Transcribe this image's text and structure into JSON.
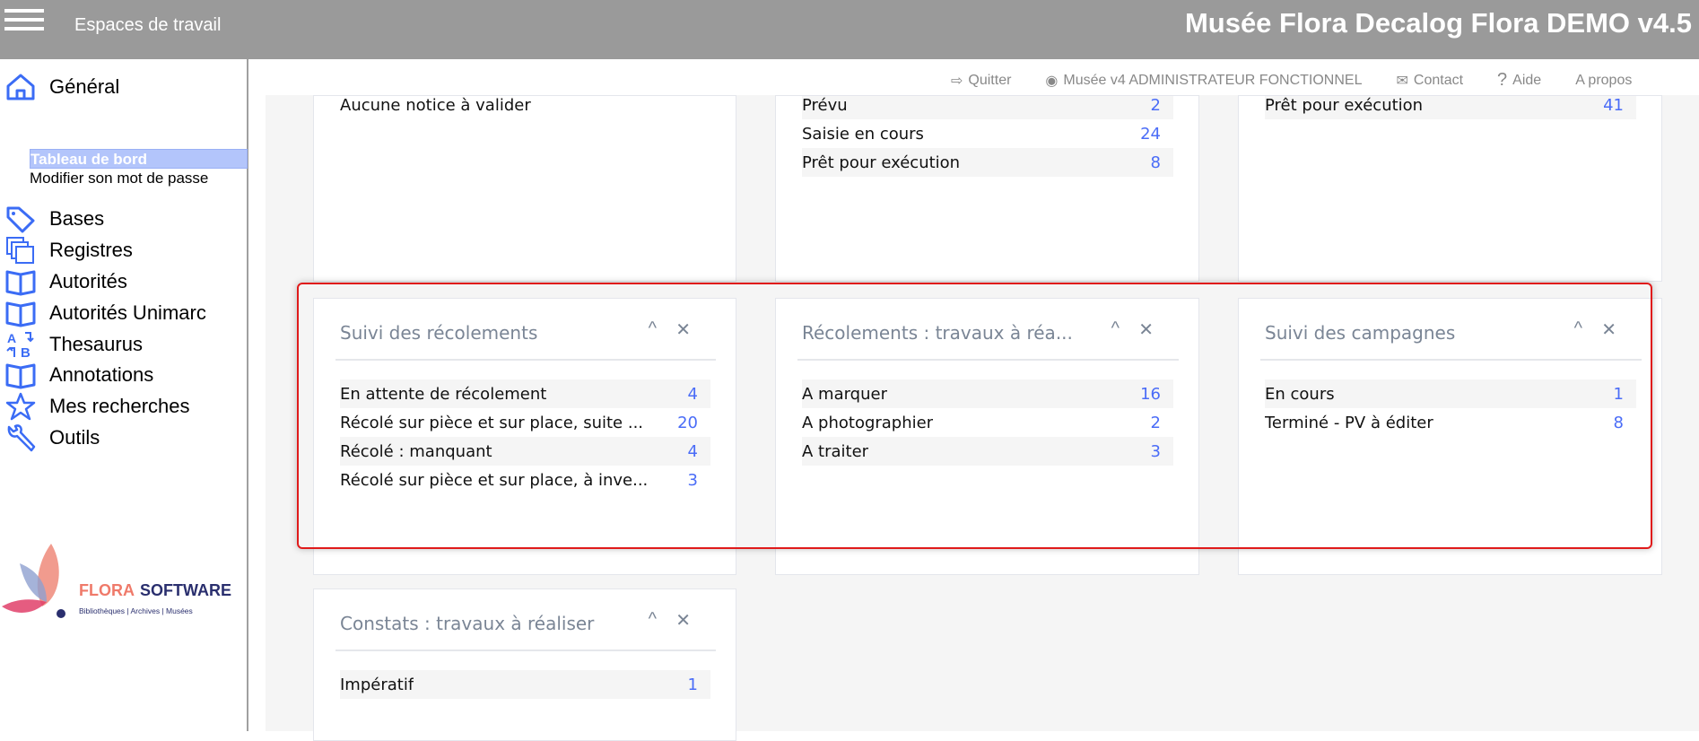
{
  "header": {
    "workspaces_label": "Espaces de travail",
    "app_title": "Musée Flora Decalog Flora DEMO v4.5"
  },
  "sidebar": {
    "general": "Général",
    "sub": [
      "Tableau de bord",
      "Modifier son mot de passe"
    ],
    "items": [
      "Bases",
      "Registres",
      "Autorités",
      "Autorités Unimarc",
      "Thesaurus",
      "Annotations",
      "Mes recherches",
      "Outils"
    ],
    "logo": {
      "brand1": "FLORA",
      "brand2": "SOFTWARE",
      "tagline": "Bibliothèques | Archives | Musées"
    }
  },
  "toplinks": {
    "quit": "Quitter",
    "user": "Musée v4 ADMINISTRATEUR FONCTIONNEL",
    "contact": "Contact",
    "help": "Aide",
    "about": "A propos"
  },
  "icons": {
    "collapse": "^",
    "close": "✕"
  },
  "cards": [
    {
      "title": "",
      "rows": [
        {
          "label": "Aucune notice à valider",
          "value": ""
        }
      ]
    },
    {
      "title": "",
      "rows": [
        {
          "label": "Prévu",
          "value": "2"
        },
        {
          "label": "Saisie en cours",
          "value": "24"
        },
        {
          "label": "Prêt pour exécution",
          "value": "8"
        }
      ]
    },
    {
      "title": "",
      "rows": [
        {
          "label": "Prêt pour exécution",
          "value": "41"
        }
      ]
    },
    {
      "title": "Suivi des récolements",
      "rows": [
        {
          "label": "En attente de récolement",
          "value": "4"
        },
        {
          "label": "Récolé sur pièce et sur place, suite ...",
          "value": "20"
        },
        {
          "label": "Récolé : manquant",
          "value": "4"
        },
        {
          "label": "Récolé sur pièce et sur place, à inve...",
          "value": "3"
        }
      ]
    },
    {
      "title": "Récolements : travaux à réa...",
      "rows": [
        {
          "label": "A marquer",
          "value": "16"
        },
        {
          "label": "A photographier",
          "value": "2"
        },
        {
          "label": "A traiter",
          "value": "3"
        }
      ]
    },
    {
      "title": "Suivi des campagnes",
      "rows": [
        {
          "label": "En cours",
          "value": "1"
        },
        {
          "label": "Terminé - PV à éditer",
          "value": "8"
        }
      ]
    },
    {
      "title": "Constats : travaux à réaliser",
      "rows": [
        {
          "label": "Impératif",
          "value": "1"
        }
      ]
    }
  ],
  "colors": {
    "accent": "#4a6cf7",
    "header": "#9a9a9a",
    "highlight": "#e01b1b"
  }
}
